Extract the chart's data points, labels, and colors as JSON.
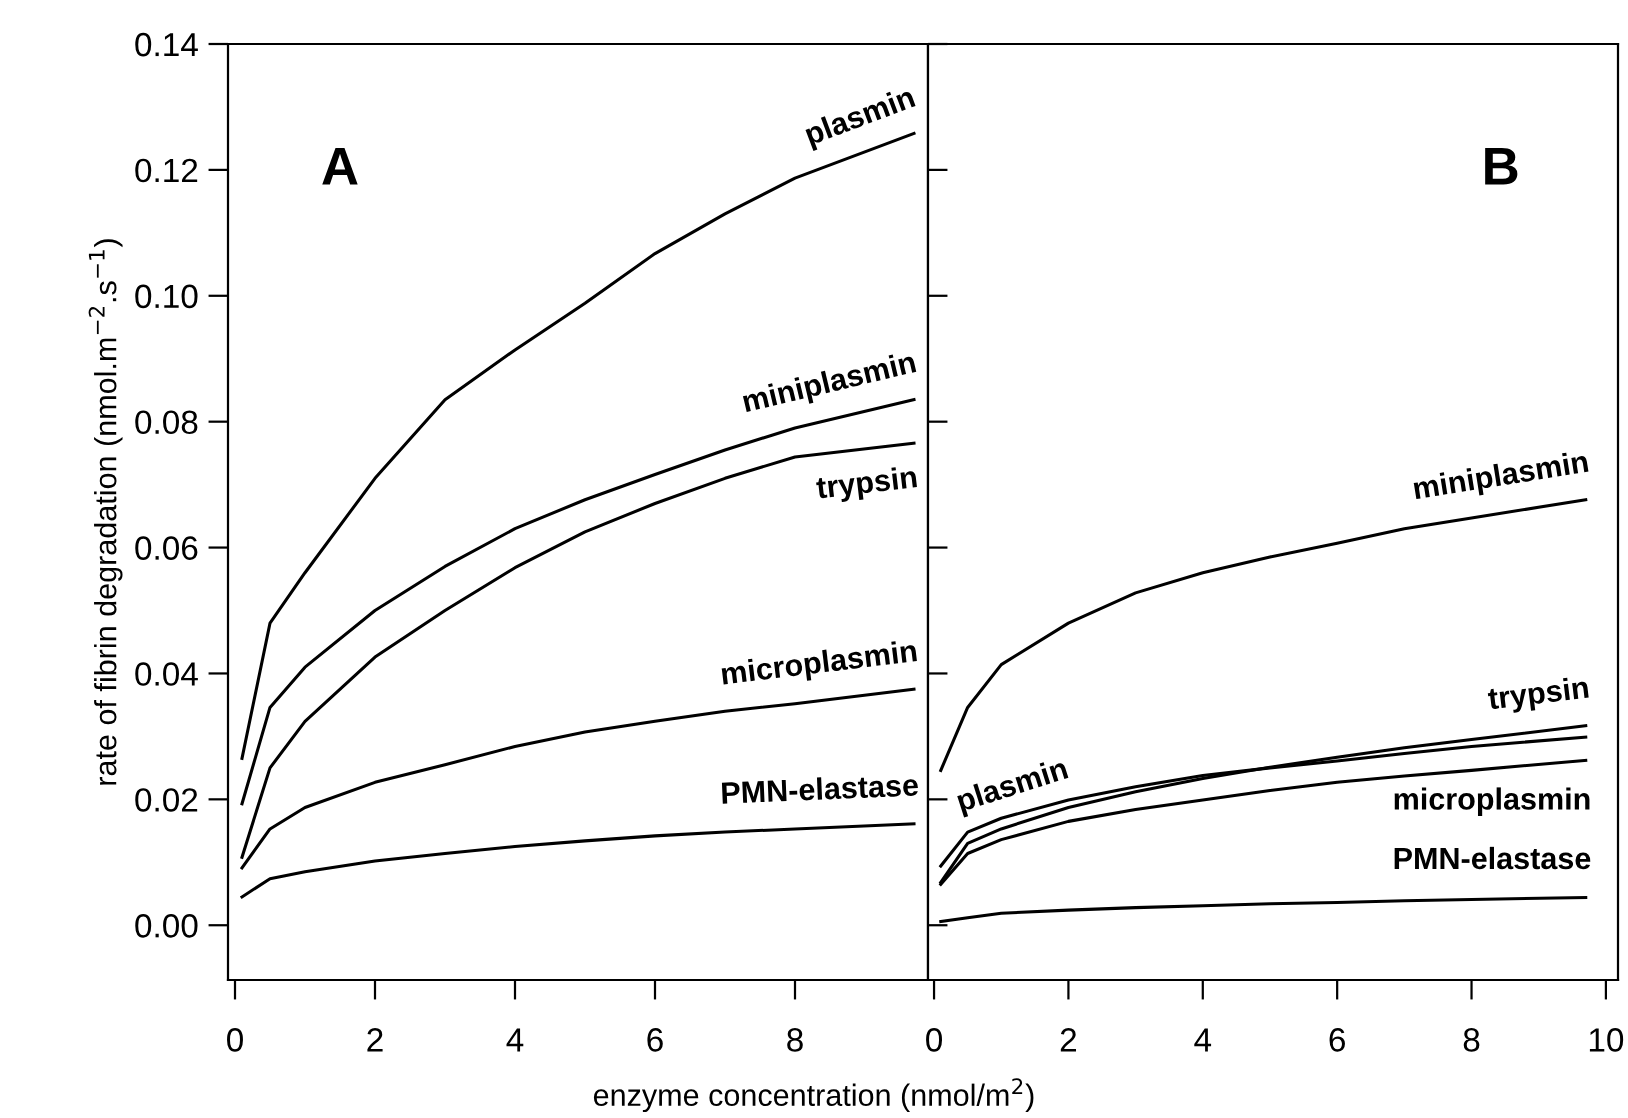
{
  "chart_data": [
    {
      "type": "line",
      "xlabel": "enzyme concentration (nmol/m$^{2}$)",
      "ylabel": "rate of fibrin degradation (nmol.m$^{−2}$.s$^{−1}$)",
      "annotations": [
        "A"
      ],
      "xlim": [
        -0.1,
        9.9
      ],
      "xticks": [
        0,
        2,
        4,
        6,
        8
      ],
      "legend": "right",
      "ylim": [
        -0.0087,
        0.14
      ],
      "yticks": [
        {
          "value": 0,
          "label": "0.00"
        },
        {
          "value": 0.02,
          "label": "0.02"
        },
        {
          "value": 0.04,
          "label": "0.04"
        },
        {
          "value": 0.06,
          "label": "0.06"
        },
        {
          "value": 0.08,
          "label": "0.08"
        },
        {
          "value": 0.1,
          "label": "0.10"
        },
        {
          "value": 0.12,
          "label": "0.12"
        },
        {
          "value": 0.14,
          "label": "0.14"
        }
      ],
      "grid": false,
      "marker": "none",
      "line_style": "solid",
      "x": [
        0.1,
        0.5,
        1,
        2,
        3,
        4,
        5,
        6,
        7,
        8,
        9.7
      ],
      "series": [
        {
          "name": "plasmin",
          "color": "#000000",
          "values": [
            0.0265,
            0.048,
            0.056,
            0.071,
            0.0835,
            0.0914,
            0.0988,
            0.1067,
            0.113,
            0.1187,
            0.1258
          ]
        },
        {
          "name": "miniplasmin",
          "color": "#000000",
          "values": [
            0.0193,
            0.0346,
            0.041,
            0.05,
            0.057,
            0.063,
            0.0676,
            0.0716,
            0.0755,
            0.079,
            0.0835
          ]
        },
        {
          "name": "trypsin",
          "color": "#000000",
          "values": [
            0.0108,
            0.025,
            0.0324,
            0.0426,
            0.05,
            0.0568,
            0.0625,
            0.067,
            0.071,
            0.0744,
            0.0766
          ]
        },
        {
          "name": "microplasmin",
          "color": "#000000",
          "values": [
            0.0091,
            0.0153,
            0.0187,
            0.0227,
            0.0255,
            0.0284,
            0.0307,
            0.0324,
            0.034,
            0.0352,
            0.0375
          ]
        },
        {
          "name": "PMN-elastase",
          "color": "#000000",
          "values": [
            0.0045,
            0.0074,
            0.0085,
            0.0102,
            0.0114,
            0.0125,
            0.0134,
            0.0142,
            0.0148,
            0.0153,
            0.0161
          ]
        }
      ]
    },
    {
      "type": "line",
      "annotations": [
        "B"
      ],
      "xlim": [
        -0.09,
        10.18
      ],
      "xticks": [
        0,
        2,
        4,
        6,
        8,
        10
      ],
      "ylim": [
        -0.0087,
        0.14
      ],
      "yticks": [
        0,
        0.02,
        0.04,
        0.06,
        0.08,
        0.1,
        0.12,
        0.14
      ],
      "tick_labels": "x",
      "grid": false,
      "marker": "none",
      "line_style": "solid",
      "x": [
        0.1,
        0.5,
        1,
        2,
        3,
        4,
        5,
        6,
        7,
        8,
        9.7
      ],
      "series": [
        {
          "name": "miniplasmin",
          "color": "#000000",
          "values": [
            0.0246,
            0.0346,
            0.0414,
            0.048,
            0.0528,
            0.056,
            0.0585,
            0.0607,
            0.063,
            0.0647,
            0.0676
          ]
        },
        {
          "name": "plasmin",
          "color": "#000000",
          "values": [
            0.0094,
            0.0148,
            0.017,
            0.0199,
            0.022,
            0.0238,
            0.025,
            0.0261,
            0.0273,
            0.0284,
            0.0299
          ]
        },
        {
          "name": "trypsin",
          "color": "#000000",
          "values": [
            0.0068,
            0.013,
            0.0153,
            0.0187,
            0.0212,
            0.0233,
            0.0251,
            0.0267,
            0.0282,
            0.0295,
            0.0317
          ]
        },
        {
          "name": "microplasmin",
          "color": "#000000",
          "values": [
            0.0065,
            0.0114,
            0.0136,
            0.0165,
            0.0184,
            0.0199,
            0.0214,
            0.0227,
            0.0237,
            0.0246,
            0.0262
          ]
        },
        {
          "name": "PMN-elastase",
          "color": "#000000",
          "values": [
            0.0006,
            0.0012,
            0.0019,
            0.0024,
            0.0028,
            0.0031,
            0.0034,
            0.0036,
            0.0039,
            0.0041,
            0.0044
          ]
        }
      ]
    }
  ]
}
